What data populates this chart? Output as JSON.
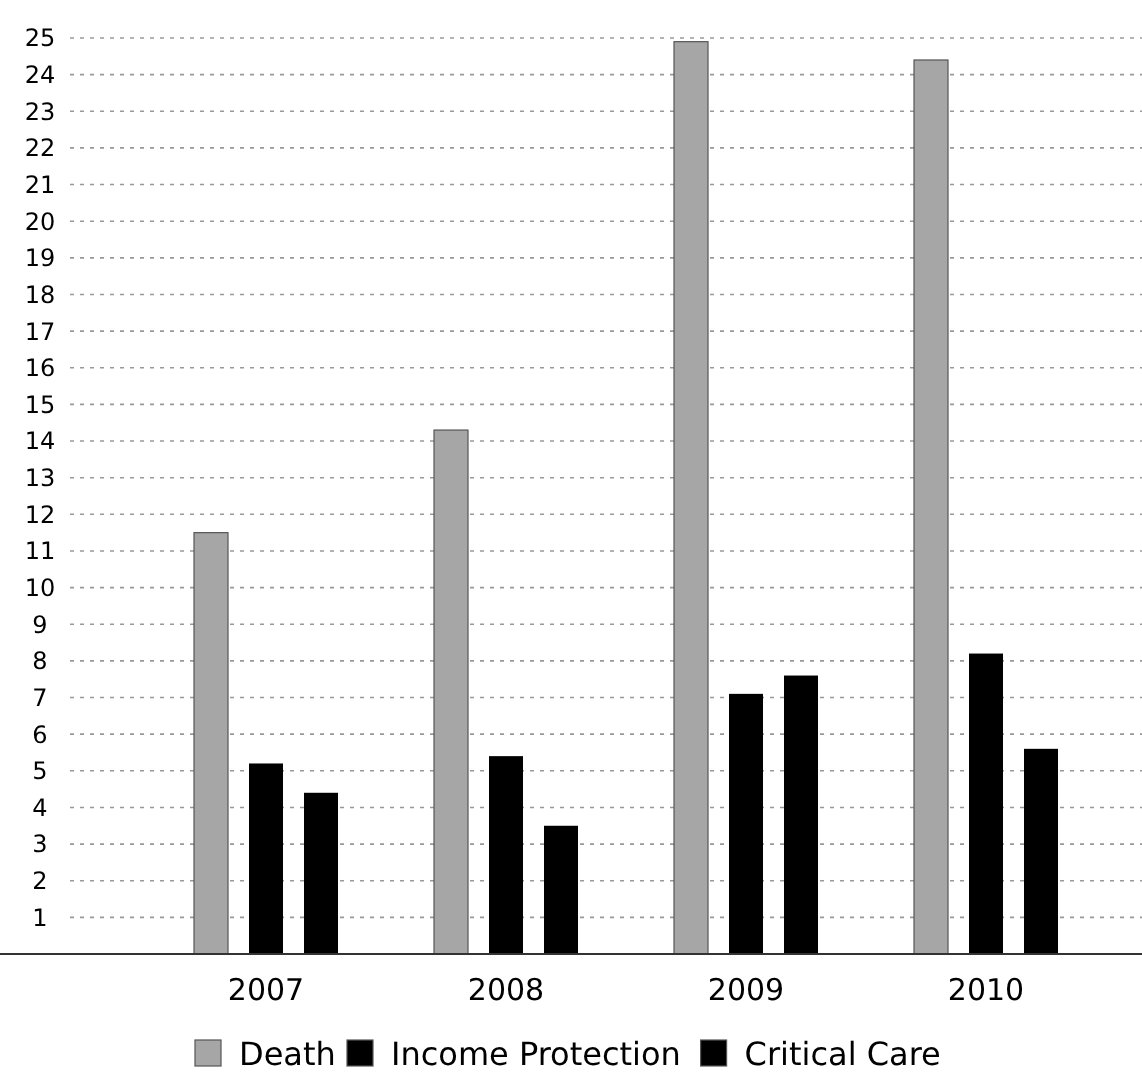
{
  "chart_data": {
    "type": "bar",
    "categories": [
      "2007",
      "2008",
      "2009",
      "2010"
    ],
    "series": [
      {
        "name": "Death",
        "color": "#a6a6a6",
        "values": [
          11.5,
          14.3,
          24.9,
          24.4
        ]
      },
      {
        "name": "Income Protection",
        "color": "#000000",
        "values": [
          5.2,
          5.4,
          7.1,
          8.2
        ]
      },
      {
        "name": "Critical Care",
        "color": "#000000",
        "values": [
          4.4,
          3.5,
          7.6,
          5.6
        ]
      }
    ],
    "ylim": [
      0,
      25
    ],
    "yticks": [
      {
        "value": 0,
        "label": null
      },
      1,
      2,
      3,
      4,
      5,
      6,
      7,
      8,
      9,
      10,
      11,
      12,
      13,
      14,
      15,
      16,
      17,
      18,
      19,
      20,
      21,
      22,
      23,
      24,
      25
    ],
    "grid": "y",
    "legend": "bottom"
  }
}
